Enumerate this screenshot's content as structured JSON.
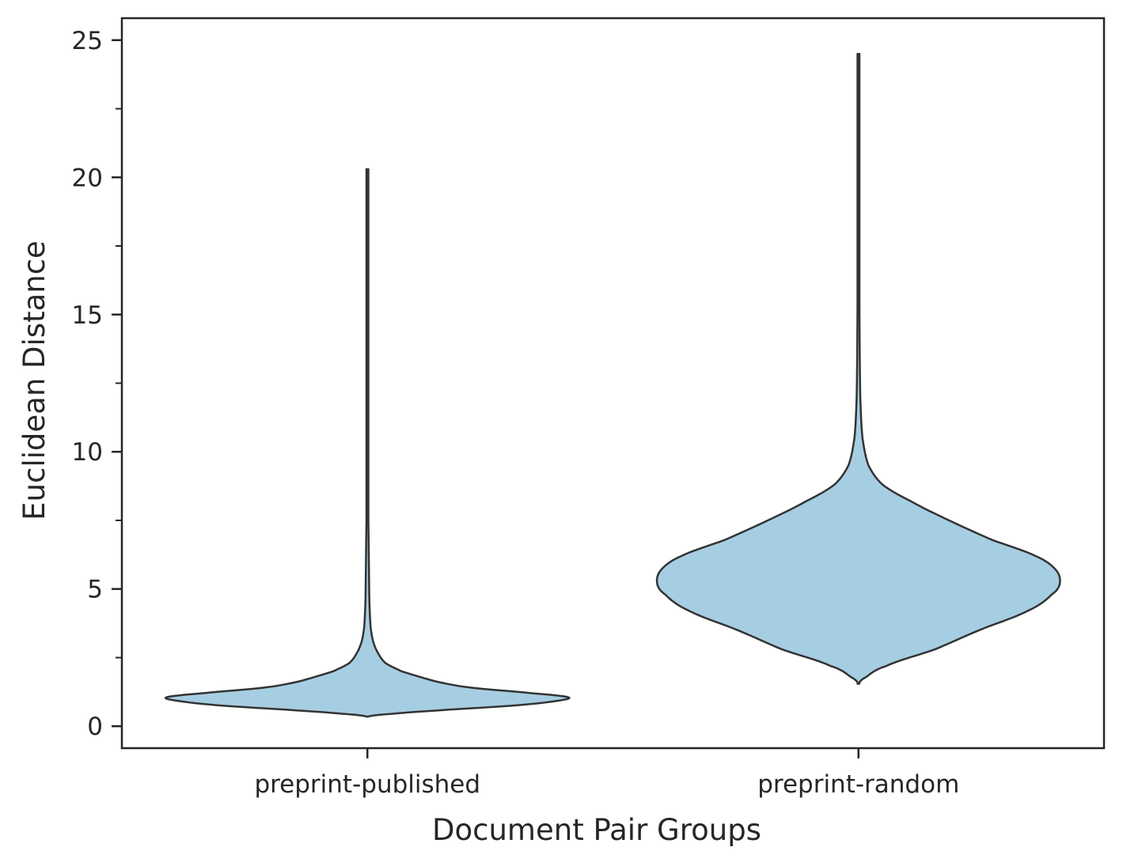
{
  "chart_data": {
    "type": "violin",
    "title": "",
    "xlabel": "Document Pair Groups",
    "ylabel": "Euclidean Distance",
    "categories": [
      "preprint-published",
      "preprint-random"
    ],
    "ylim": [
      -0.8,
      25.8
    ],
    "yticks": [
      0,
      5,
      10,
      15,
      20,
      25
    ],
    "yticks_minor": [
      2.5,
      7.5,
      12.5,
      17.5,
      22.5
    ],
    "grid": false,
    "legend": "none",
    "fill_color": "#a6cee3",
    "edge_color": "#333333",
    "series": [
      {
        "category": "preprint-published",
        "min": 0.35,
        "max": 20.3,
        "density_profile": [
          [
            0.35,
            0.0
          ],
          [
            0.45,
            0.12
          ],
          [
            0.6,
            0.4
          ],
          [
            0.75,
            0.72
          ],
          [
            0.9,
            0.92
          ],
          [
            1.05,
            1.0
          ],
          [
            1.2,
            0.82
          ],
          [
            1.4,
            0.52
          ],
          [
            1.6,
            0.36
          ],
          [
            1.8,
            0.26
          ],
          [
            2.0,
            0.17
          ],
          [
            2.3,
            0.09
          ],
          [
            2.7,
            0.05
          ],
          [
            3.1,
            0.028
          ],
          [
            3.6,
            0.016
          ],
          [
            4.5,
            0.01
          ],
          [
            5.5,
            0.008
          ],
          [
            6.8,
            0.006
          ],
          [
            8.0,
            0.004
          ],
          [
            12.0,
            0.003
          ],
          [
            20.3,
            0.002
          ]
        ]
      },
      {
        "category": "preprint-random",
        "min": 1.55,
        "max": 24.5,
        "density_profile": [
          [
            1.55,
            0.0
          ],
          [
            1.8,
            0.04
          ],
          [
            2.2,
            0.14
          ],
          [
            2.8,
            0.38
          ],
          [
            3.5,
            0.6
          ],
          [
            4.2,
            0.84
          ],
          [
            4.8,
            0.96
          ],
          [
            5.2,
            1.0
          ],
          [
            5.7,
            0.98
          ],
          [
            6.2,
            0.88
          ],
          [
            6.8,
            0.66
          ],
          [
            7.5,
            0.45
          ],
          [
            8.2,
            0.26
          ],
          [
            8.8,
            0.12
          ],
          [
            9.5,
            0.05
          ],
          [
            10.5,
            0.02
          ],
          [
            12.0,
            0.009
          ],
          [
            15.0,
            0.005
          ],
          [
            20.0,
            0.004
          ],
          [
            24.5,
            0.002
          ]
        ]
      }
    ]
  }
}
